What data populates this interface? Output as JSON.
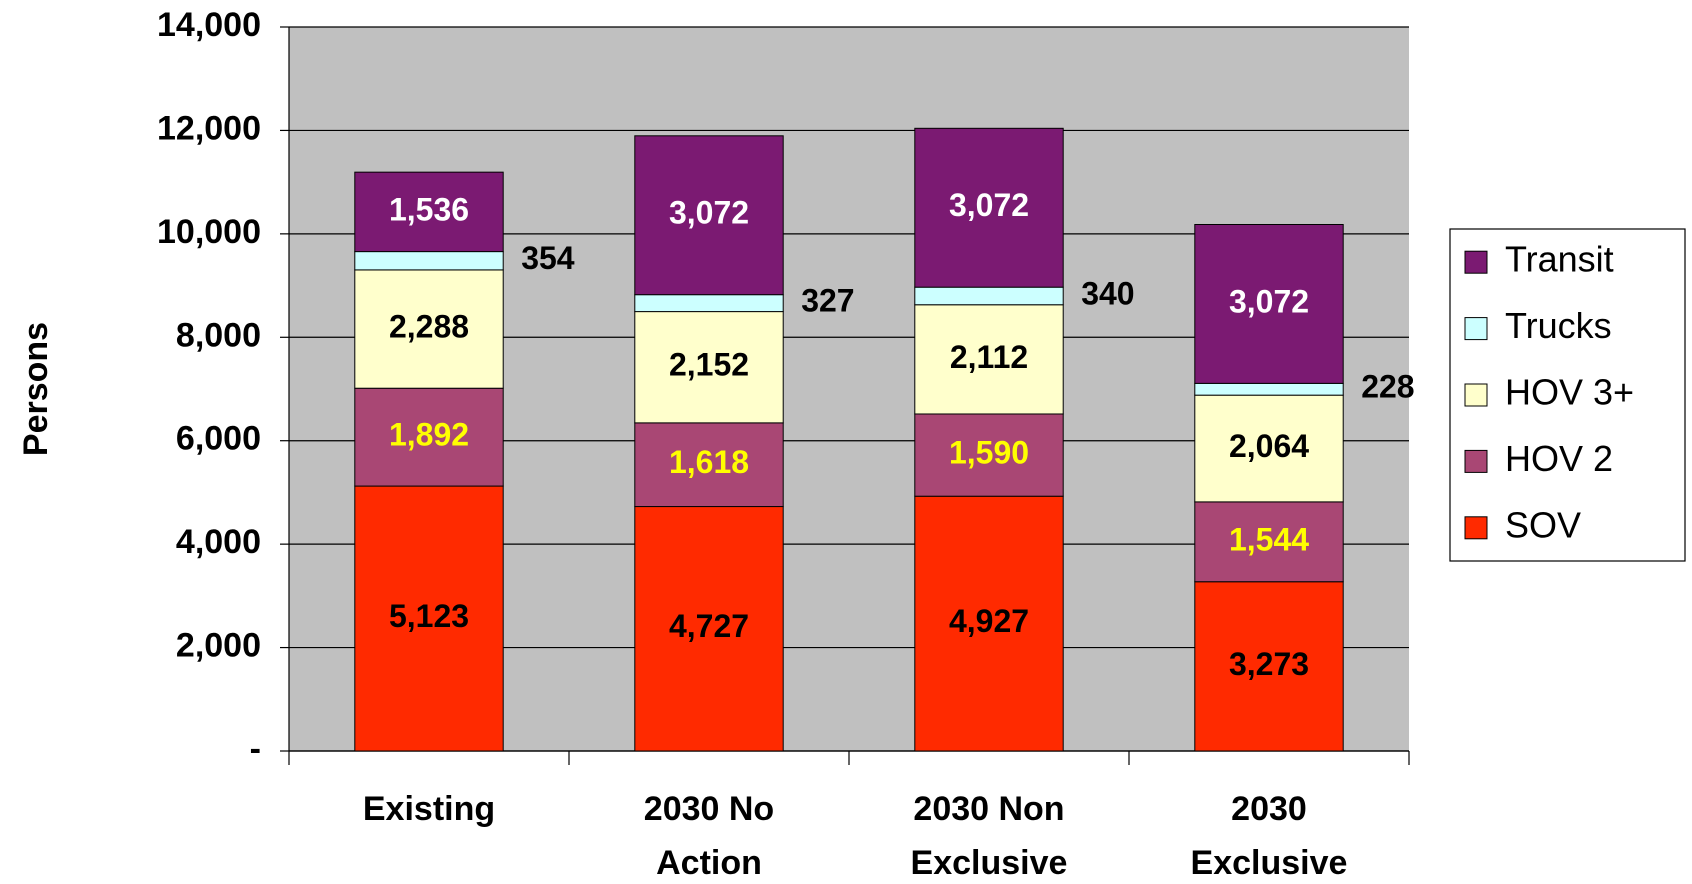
{
  "chart_data": {
    "type": "stacked_bar",
    "y_label": "Persons",
    "categories": [
      "Existing",
      "2030 No Action",
      "2030 Non Exclusive",
      "2030 Exclusive"
    ],
    "series": [
      {
        "name": "SOV",
        "color": "#ff2a00",
        "label_color": "#000000",
        "values": [
          5123,
          4727,
          4927,
          3273
        ],
        "value_labels": [
          "5,123",
          "4,727",
          "4,927",
          "3,273"
        ]
      },
      {
        "name": "HOV 2",
        "color": "#a94774",
        "label_color": "#ffff00",
        "values": [
          1892,
          1618,
          1590,
          1544
        ],
        "value_labels": [
          "1,892",
          "1,618",
          "1,590",
          "1,544"
        ]
      },
      {
        "name": "HOV 3+",
        "color": "#ffffcc",
        "label_color": "#000000",
        "values": [
          2288,
          2152,
          2112,
          2064
        ],
        "value_labels": [
          "2,288",
          "2,152",
          "2,112",
          "2,064"
        ]
      },
      {
        "name": "Trucks",
        "color": "#ccffff",
        "label_color": "#000000",
        "label_position": "outside",
        "values": [
          354,
          327,
          340,
          228
        ]
      },
      {
        "name": "Transit",
        "color": "#7b1a72",
        "label_color": "#ffffff",
        "values": [
          1536,
          3072,
          3072,
          3072
        ],
        "value_labels": [
          "1,536",
          "3,072",
          "3,072",
          "3,072"
        ]
      }
    ],
    "ylim": [
      0,
      14000
    ],
    "yticks": [
      {
        "value": 0,
        "label": "-"
      },
      {
        "value": 2000,
        "label": "2,000"
      },
      {
        "value": 4000,
        "label": "4,000"
      },
      {
        "value": 6000,
        "label": "6,000"
      },
      {
        "value": 8000,
        "label": "8,000"
      },
      {
        "value": 10000,
        "label": "10,000"
      },
      {
        "value": 12000,
        "label": "12,000"
      },
      {
        "value": 14000,
        "label": "14,000"
      }
    ],
    "grid": true,
    "plot_background": "#c0c0c0",
    "legend": "right"
  }
}
